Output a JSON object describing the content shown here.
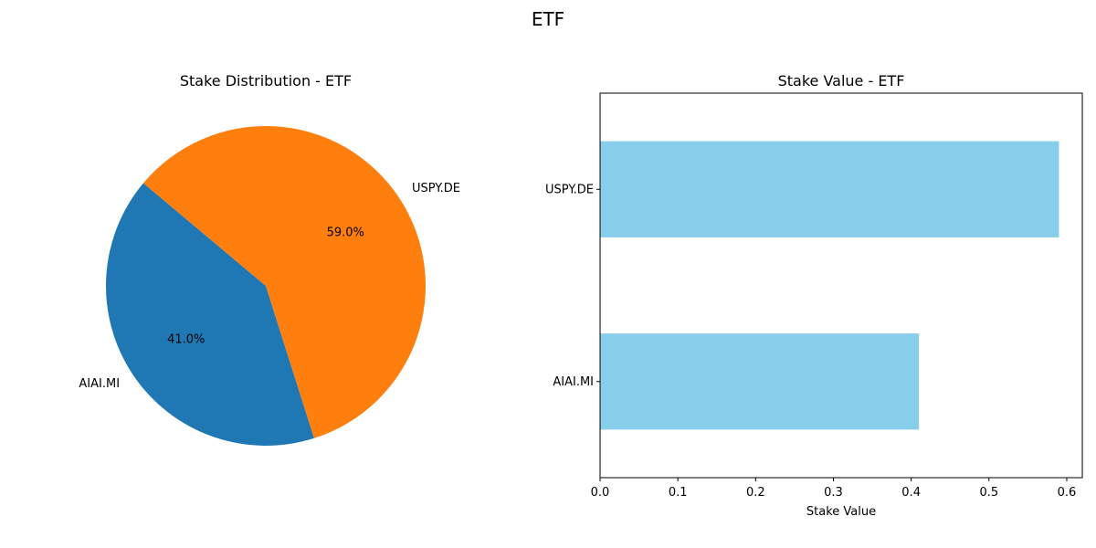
{
  "figure": {
    "title": "ETF"
  },
  "chart_data": [
    {
      "type": "pie",
      "title": "Stake Distribution - ETF",
      "labels": [
        "AIAI.MI",
        "USPY.DE"
      ],
      "values": [
        41.0,
        59.0
      ],
      "pct_labels": [
        "41.0%",
        "59.0%"
      ],
      "colors": [
        "#1f77b4",
        "#ff7f0e"
      ]
    },
    {
      "type": "bar",
      "orientation": "horizontal",
      "title": "Stake Value - ETF",
      "categories": [
        "AIAI.MI",
        "USPY.DE"
      ],
      "values": [
        0.41,
        0.59
      ],
      "xlabel": "Stake Value",
      "ylabel": "",
      "xlim": [
        0,
        0.62
      ],
      "xticks": [
        0.0,
        0.1,
        0.2,
        0.3,
        0.4,
        0.5,
        0.6
      ],
      "xtick_labels": [
        "0.0",
        "0.1",
        "0.2",
        "0.3",
        "0.4",
        "0.5",
        "0.6"
      ],
      "color": "#87ceeb",
      "grid": false
    }
  ]
}
